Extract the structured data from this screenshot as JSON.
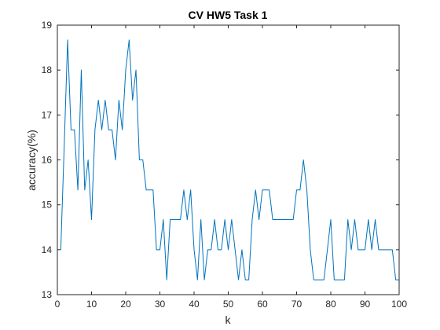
{
  "chart_data": {
    "type": "line",
    "title": "CV HW5 Task 1",
    "xlabel": "k",
    "ylabel": "accuracy(%)",
    "xlim": [
      0,
      100
    ],
    "ylim": [
      13,
      19
    ],
    "xticks": [
      0,
      10,
      20,
      30,
      40,
      50,
      60,
      70,
      80,
      90,
      100
    ],
    "yticks": [
      13,
      14,
      15,
      16,
      17,
      18,
      19
    ],
    "grid": false,
    "legend": "none",
    "series_color": "#0072BD",
    "series": [
      {
        "x": [
          1,
          2,
          3,
          4,
          5,
          6,
          7,
          8,
          9,
          10,
          11,
          12,
          13,
          14,
          15,
          16,
          17,
          18,
          19,
          20,
          21,
          22,
          23,
          24,
          25,
          26,
          27,
          28,
          29,
          30,
          31,
          32,
          33,
          34,
          35,
          36,
          37,
          38,
          39,
          40,
          41,
          42,
          43,
          44,
          45,
          46,
          47,
          48,
          49,
          50,
          51,
          52,
          53,
          54,
          55,
          56,
          57,
          58,
          59,
          60,
          61,
          62,
          63,
          64,
          65,
          66,
          67,
          68,
          69,
          70,
          71,
          72,
          73,
          74,
          75,
          76,
          77,
          78,
          79,
          80,
          81,
          82,
          83,
          84,
          85,
          86,
          87,
          88,
          89,
          90,
          91,
          92,
          93,
          94,
          95,
          96,
          97,
          98,
          99,
          100
        ],
        "values": [
          14.0,
          16.3,
          18.67,
          16.67,
          16.67,
          15.33,
          18.0,
          15.33,
          16.0,
          14.67,
          16.67,
          17.33,
          16.67,
          17.33,
          16.67,
          16.67,
          16.0,
          17.33,
          16.67,
          18.0,
          18.67,
          17.33,
          18.0,
          16.0,
          16.0,
          15.33,
          15.33,
          15.33,
          14.0,
          14.0,
          14.67,
          13.33,
          14.67,
          14.67,
          14.67,
          14.67,
          15.33,
          14.67,
          15.33,
          14.0,
          13.33,
          14.67,
          13.33,
          14.0,
          14.0,
          14.67,
          14.0,
          14.0,
          14.67,
          14.0,
          14.67,
          14.0,
          13.33,
          14.0,
          13.33,
          13.33,
          14.67,
          15.33,
          14.67,
          15.33,
          15.33,
          15.33,
          14.67,
          14.67,
          14.67,
          14.67,
          14.67,
          14.67,
          14.67,
          15.33,
          15.33,
          16.0,
          15.33,
          14.0,
          13.33,
          13.33,
          13.33,
          13.33,
          14.0,
          14.67,
          13.33,
          13.33,
          13.33,
          13.33,
          14.67,
          14.0,
          14.67,
          14.0,
          14.0,
          14.0,
          14.67,
          14.0,
          14.67,
          14.0,
          14.0,
          14.0,
          14.0,
          14.0,
          13.33,
          13.33
        ]
      }
    ]
  }
}
